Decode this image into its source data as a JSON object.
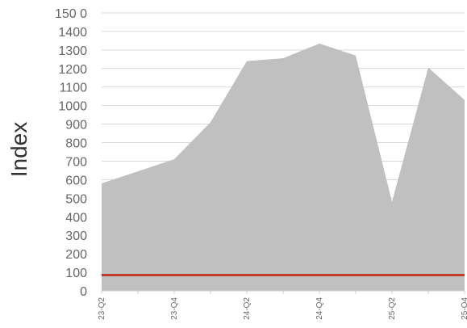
{
  "chart_data": {
    "type": "area",
    "ylabel": "Index",
    "xlabel": "",
    "title": "",
    "ylim": [
      0,
      1500
    ],
    "y_ticks": [
      0,
      100,
      200,
      300,
      400,
      500,
      600,
      700,
      800,
      900,
      1000,
      1100,
      1200,
      1300,
      1400,
      1500
    ],
    "y_tick_labels": [
      "0",
      "100",
      "200",
      "300",
      "400",
      "500",
      "600",
      "700",
      "800",
      "900",
      "1000",
      "1100",
      "1200",
      "1300",
      "1400",
      "150 0"
    ],
    "x_tick_labels": [
      "23-Q2",
      "23-Q4",
      "24-Q2",
      "24-Q4",
      "25-Q2",
      "25-Q4"
    ],
    "x": [
      "23-Q2",
      "23-Q3",
      "23-Q4",
      "24-Q1",
      "24-Q2",
      "24-Q3",
      "24-Q4",
      "25-Q1",
      "25-Q2",
      "25-Q3",
      "25-Q4"
    ],
    "series": [
      {
        "values": [
          580,
          645,
          710,
          910,
          1240,
          1255,
          1335,
          1270,
          480,
          1205,
          1030
        ],
        "color": "#c0c0c0",
        "kind": "area"
      },
      {
        "values": [
          85,
          85,
          85,
          85,
          85,
          85,
          85,
          85,
          85,
          85,
          85
        ],
        "color": "#c0392b",
        "kind": "line"
      }
    ],
    "grid": true,
    "legend": "none"
  }
}
